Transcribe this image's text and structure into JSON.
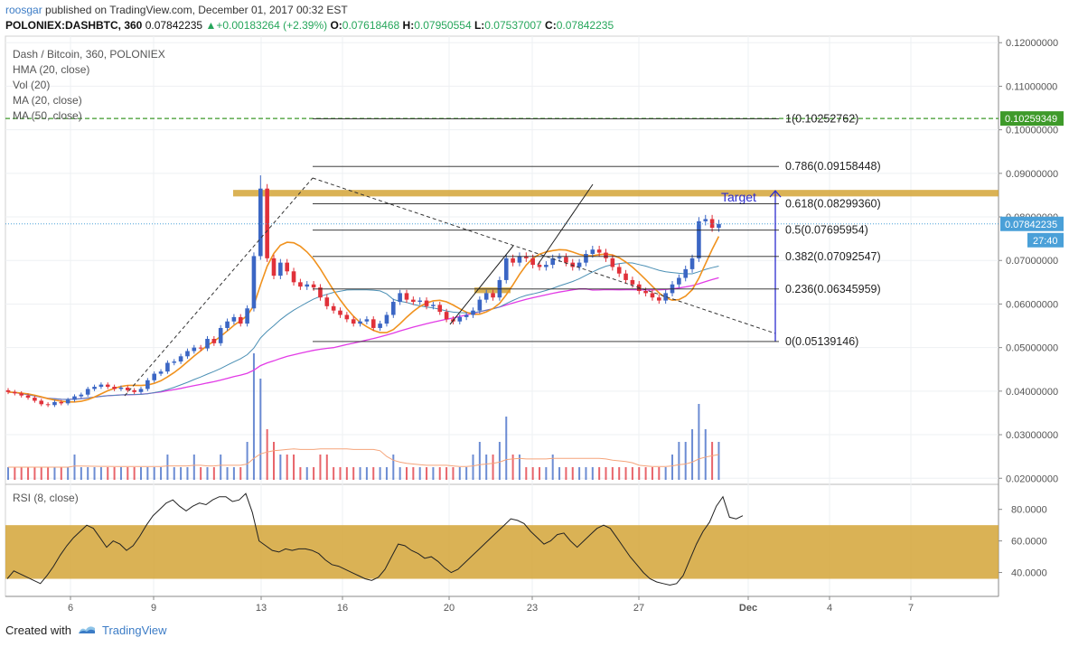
{
  "header": {
    "user": "roosgar",
    "published_text": "published on TradingView.com, December 01, 2017 00:32 EST",
    "symbol": "POLONIEX:DASHBTC, 360",
    "last": "0.07842235",
    "change": "+0.00183264 (+2.39%)",
    "o_label": "O:",
    "o": "0.07618468",
    "h_label": "H:",
    "h": "0.07950554",
    "l_label": "L:",
    "l": "0.07537007",
    "c_label": "C:",
    "c": "0.07842235"
  },
  "legend": {
    "title": "Dash / Bitcoin, 360, POLONIEX",
    "hma": "HMA (20, close)",
    "vol": "Vol (20)",
    "ma20": "MA (20, close)",
    "ma50": "MA (50, close)",
    "rsi": "RSI (8, close)"
  },
  "footer": {
    "created_with": "Created with",
    "brand": "TradingView"
  },
  "colors": {
    "up": "#3b66c4",
    "down": "#e0313a",
    "hma": "#f0921e",
    "ma20": "#4a8fb4",
    "ma50": "#e23be6",
    "zone": "#d4a537",
    "fib": "#222222",
    "target": "#2d2dd0",
    "green_dash": "#3e9a2a",
    "rsi_line": "#222222"
  },
  "chart_data": [
    {
      "type": "candlestick",
      "title": "Dash / Bitcoin, 360, POLONIEX",
      "ylim": [
        0.0186,
        0.1215
      ],
      "xlabel": "",
      "ylabel": "",
      "x_ticks": [
        "6",
        "9",
        "13",
        "16",
        "20",
        "23",
        "27",
        "Dec",
        "4",
        "7"
      ],
      "y_ticks": [
        "0.12000000",
        "0.11000000",
        "0.10000000",
        "0.09000000",
        "0.08000000",
        "0.07000000",
        "0.06000000",
        "0.05000000",
        "0.04000000",
        "0.03000000",
        "0.02000000"
      ],
      "price_labels": {
        "current": "0.07842235",
        "countdown": "27:40",
        "green_level": "0.10259349"
      },
      "green_level": 0.10259349,
      "fibonacci": [
        {
          "label": "1(0.10252762)",
          "value": 0.10252762
        },
        {
          "label": "0.786(0.09158448)",
          "value": 0.09158448
        },
        {
          "label": "0.618(0.08299360)",
          "value": 0.0829936
        },
        {
          "label": "0.5(0.07695954)",
          "value": 0.07695954
        },
        {
          "label": "0.382(0.07092547)",
          "value": 0.07092547
        },
        {
          "label": "0.236(0.06345959)",
          "value": 0.06345959
        },
        {
          "label": "0(0.05139146)",
          "value": 0.05139146
        }
      ],
      "annotations": [
        {
          "text": "Target"
        }
      ],
      "resistance_zone": [
        0.0847,
        0.0862
      ],
      "candles_close": [
        0.0398,
        0.0395,
        0.039,
        0.0385,
        0.0378,
        0.037,
        0.0368,
        0.0375,
        0.0372,
        0.038,
        0.0388,
        0.0392,
        0.0405,
        0.041,
        0.0415,
        0.041,
        0.0405,
        0.0408,
        0.0402,
        0.0398,
        0.0405,
        0.0425,
        0.044,
        0.0445,
        0.0465,
        0.0468,
        0.048,
        0.0492,
        0.05,
        0.0498,
        0.052,
        0.051,
        0.0545,
        0.056,
        0.057,
        0.0555,
        0.059,
        0.071,
        0.0865,
        0.0705,
        0.0665,
        0.0695,
        0.0675,
        0.065,
        0.064,
        0.0645,
        0.0638,
        0.0615,
        0.0595,
        0.0585,
        0.0575,
        0.0565,
        0.0555,
        0.056,
        0.0565,
        0.0545,
        0.0555,
        0.0575,
        0.0605,
        0.0625,
        0.061,
        0.0605,
        0.0608,
        0.0595,
        0.0598,
        0.0582,
        0.0565,
        0.056,
        0.057,
        0.0575,
        0.0585,
        0.061,
        0.0625,
        0.0615,
        0.0655,
        0.0705,
        0.0695,
        0.071,
        0.0705,
        0.069,
        0.0685,
        0.069,
        0.0705,
        0.0708,
        0.0695,
        0.0685,
        0.0695,
        0.0715,
        0.0725,
        0.0718,
        0.0705,
        0.0685,
        0.067,
        0.0655,
        0.0645,
        0.063,
        0.0625,
        0.0615,
        0.0608,
        0.0625,
        0.0645,
        0.066,
        0.068,
        0.0705,
        0.079,
        0.0795,
        0.0775,
        0.0784
      ],
      "volume": [
        1,
        1,
        1,
        1,
        1,
        1,
        1,
        1,
        1,
        1,
        2,
        1,
        1,
        1,
        1,
        1,
        1,
        1,
        1,
        1,
        1,
        1,
        1,
        1,
        2,
        1,
        1,
        1,
        2,
        1,
        1,
        1,
        2,
        1,
        1,
        1,
        3,
        10,
        8,
        4,
        3,
        2,
        2,
        2,
        1,
        1,
        1,
        2,
        2,
        1,
        1,
        1,
        1,
        1,
        1,
        1,
        1,
        1,
        2,
        1,
        1,
        1,
        1,
        1,
        1,
        1,
        1,
        1,
        1,
        1,
        2,
        3,
        2,
        2,
        3,
        5,
        2,
        2,
        1,
        1,
        1,
        1,
        2,
        1,
        1,
        1,
        1,
        1,
        1,
        1,
        1,
        1,
        1,
        1,
        1,
        1,
        1,
        1,
        1,
        1,
        2,
        3,
        3,
        4,
        6,
        4,
        3,
        3
      ],
      "series": [
        {
          "name": "HMA (20, close)",
          "color": "#f0921e"
        },
        {
          "name": "MA (20, close)",
          "color": "#4a8fb4"
        },
        {
          "name": "MA (50, close)",
          "color": "#e23be6"
        }
      ]
    },
    {
      "type": "line",
      "title": "RSI (8, close)",
      "ylim": [
        26,
        93
      ],
      "y_ticks": [
        "80.0000",
        "60.0000",
        "40.0000"
      ],
      "band": [
        36,
        70
      ],
      "values": [
        36,
        41,
        39,
        37,
        35,
        33,
        38,
        44,
        51,
        57,
        62,
        66,
        70,
        68,
        62,
        56,
        60,
        58,
        54,
        57,
        63,
        70,
        76,
        80,
        84,
        86,
        82,
        79,
        82,
        84,
        83,
        86,
        88,
        88,
        85,
        86,
        90,
        78,
        60,
        57,
        54,
        53,
        55,
        54,
        55,
        55,
        54,
        52,
        48,
        45,
        44,
        42,
        40,
        38,
        36,
        35,
        37,
        42,
        50,
        58,
        57,
        54,
        52,
        49,
        50,
        47,
        43,
        40,
        42,
        46,
        50,
        54,
        58,
        62,
        66,
        70,
        74,
        73,
        71,
        66,
        62,
        58,
        60,
        64,
        65,
        60,
        56,
        60,
        64,
        68,
        70,
        68,
        62,
        56,
        50,
        45,
        40,
        36,
        34,
        33,
        32,
        33,
        38,
        48,
        58,
        66,
        72,
        82,
        88,
        75,
        74,
        76
      ],
      "series": [
        {
          "name": "RSI (8, close)",
          "color": "#222222"
        }
      ]
    }
  ]
}
